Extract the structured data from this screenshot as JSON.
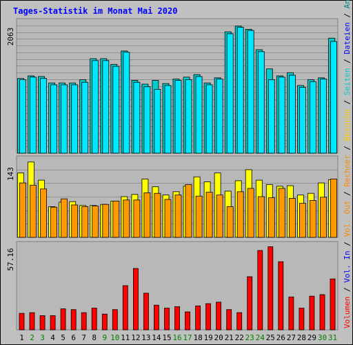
{
  "title": "Tages-Statistik im Monat Mai 2020",
  "colors": {
    "background": "#c0c0c0",
    "panel_bg": "#b8b8b8",
    "title": "#0000ff",
    "hits_face": "#00cccc",
    "hits_top": "#33ddbb",
    "files_face": "#00e8ff",
    "pages_face": "#ffff00",
    "visits_face": "#ff9900",
    "kbytes_face": "#ff0000",
    "weekend_label": "#008000",
    "weekday_label": "#000000"
  },
  "chart_data": [
    {
      "type": "bar",
      "panel": "top",
      "ymax_label": "2063",
      "ylim": [
        0,
        2063
      ],
      "categories": [
        "1",
        "2",
        "3",
        "4",
        "5",
        "6",
        "7",
        "8",
        "9",
        "10",
        "11",
        "12",
        "13",
        "14",
        "15",
        "16",
        "17",
        "18",
        "19",
        "20",
        "21",
        "22",
        "23",
        "24",
        "25",
        "26",
        "27",
        "28",
        "29",
        "30",
        "31"
      ],
      "weekend_days": [
        "2",
        "3",
        "9",
        "10",
        "16",
        "17",
        "23",
        "24",
        "30",
        "31"
      ],
      "series": [
        {
          "name": "Anfragen",
          "color": "#00cccc",
          "values": [
            1170,
            1210,
            1200,
            1100,
            1100,
            1100,
            1150,
            1480,
            1480,
            1390,
            1600,
            1140,
            1080,
            1140,
            1090,
            1160,
            1190,
            1230,
            1100,
            1180,
            1900,
            1990,
            1940,
            1620,
            1320,
            1210,
            1260,
            1060,
            1150,
            1180,
            1800
          ]
        },
        {
          "name": "Dateien",
          "color": "#00e8ff",
          "values": [
            1150,
            1190,
            1170,
            1070,
            1070,
            1070,
            1110,
            1450,
            1450,
            1360,
            1580,
            1110,
            1040,
            1000,
            1060,
            1140,
            1150,
            1200,
            1070,
            1160,
            1870,
            1970,
            1920,
            1590,
            1150,
            1190,
            1220,
            1030,
            1120,
            1160,
            1750
          ]
        }
      ],
      "legend": [
        "Anfragen",
        "Dateien",
        "Seiten"
      ]
    },
    {
      "type": "bar",
      "panel": "middle",
      "ymax_label": "143",
      "ylim": [
        0,
        143
      ],
      "categories": [
        "1",
        "2",
        "3",
        "4",
        "5",
        "6",
        "7",
        "8",
        "9",
        "10",
        "11",
        "12",
        "13",
        "14",
        "15",
        "16",
        "17",
        "18",
        "19",
        "20",
        "21",
        "22",
        "23",
        "24",
        "25",
        "26",
        "27",
        "28",
        "29",
        "30",
        "31"
      ],
      "series": [
        {
          "name": "Seiten",
          "color": "#ffff00",
          "values": [
            117,
            137,
            104,
            56,
            64,
            65,
            58,
            58,
            60,
            66,
            74,
            78,
            106,
            92,
            77,
            83,
            93,
            110,
            101,
            117,
            84,
            103,
            123,
            104,
            96,
            93,
            94,
            77,
            80,
            99,
            105
          ]
        },
        {
          "name": "Besuche",
          "color": "#ff9900",
          "values": [
            99,
            95,
            88,
            55,
            70,
            59,
            56,
            57,
            60,
            66,
            68,
            68,
            81,
            80,
            69,
            77,
            96,
            75,
            82,
            77,
            56,
            83,
            89,
            74,
            72,
            89,
            71,
            62,
            67,
            73,
            106
          ]
        }
      ],
      "legend": [
        "Besuche",
        "Rechner",
        "Vol. Out"
      ]
    },
    {
      "type": "bar",
      "panel": "bottom",
      "ymax_label": "57.16",
      "ylim": [
        0,
        57.16
      ],
      "categories": [
        "1",
        "2",
        "3",
        "4",
        "5",
        "6",
        "7",
        "8",
        "9",
        "10",
        "11",
        "12",
        "13",
        "14",
        "15",
        "16",
        "17",
        "18",
        "19",
        "20",
        "21",
        "22",
        "23",
        "24",
        "25",
        "26",
        "27",
        "28",
        "29",
        "30",
        "31"
      ],
      "series": [
        {
          "name": "Volumen",
          "color": "#ff0000",
          "values": [
            11,
            11.5,
            9.5,
            9.5,
            14,
            13.5,
            11.5,
            14.5,
            10.5,
            13.5,
            29.5,
            41,
            24.5,
            16.5,
            14.5,
            15.5,
            12,
            16,
            17.5,
            18.5,
            13.5,
            11.5,
            35.5,
            53,
            55.5,
            45.5,
            22,
            14.5,
            22.5,
            23.5,
            34
          ]
        }
      ],
      "legend": [
        "Volumen",
        "Vol. In"
      ]
    }
  ]
}
